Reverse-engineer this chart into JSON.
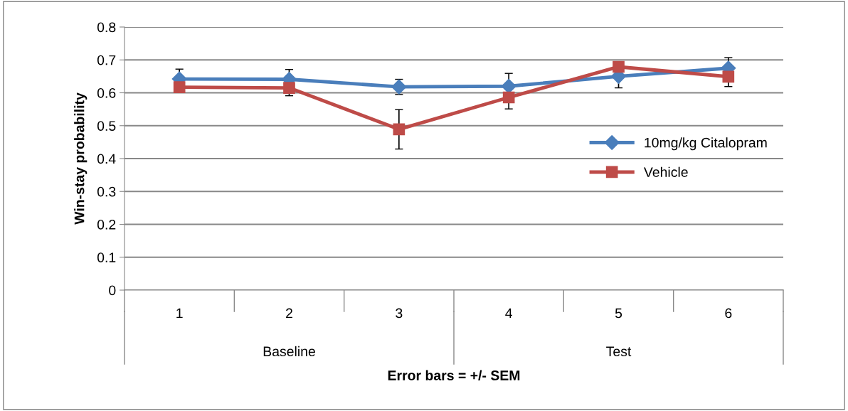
{
  "chart_data": {
    "type": "line",
    "xlabel": "Error bars = +/- SEM",
    "ylabel": "Win-stay probability",
    "categories": [
      "1",
      "2",
      "3",
      "4",
      "5",
      "6"
    ],
    "annotations": [
      "Baseline",
      "Test"
    ],
    "series": [
      {
        "name": "10mg/kg Citalopram",
        "color": "#4a7ebb",
        "marker": "diamond",
        "values": [
          0.642,
          0.641,
          0.618,
          0.62,
          0.65,
          0.675
        ],
        "errors": [
          0.03,
          0.03,
          0.023,
          0.039,
          0.035,
          0.032
        ]
      },
      {
        "name": "Vehicle",
        "color": "#be4b48",
        "marker": "square",
        "values": [
          0.617,
          0.615,
          0.489,
          0.586,
          0.679,
          0.649
        ],
        "errors": [
          null,
          0.024,
          0.06,
          0.035,
          null,
          0.03
        ]
      }
    ],
    "ylim": [
      0,
      0.8
    ],
    "yticks": [
      0,
      0.1,
      0.2,
      0.3,
      0.4,
      0.5,
      0.6,
      0.7,
      0.8
    ],
    "grid": "y",
    "legend": "center right",
    "line_style": "solid"
  }
}
